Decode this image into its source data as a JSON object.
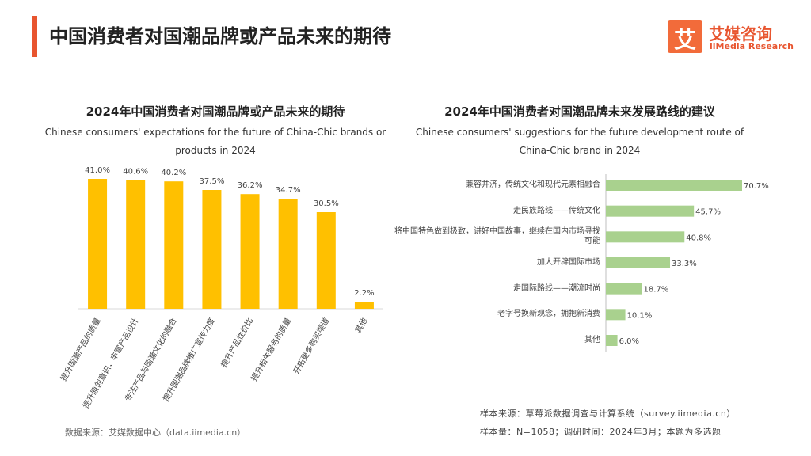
{
  "header": {
    "title": "中国消费者对国潮品牌或产品未来的期待",
    "logo_mark": "艾",
    "logo_cn": "艾媒咨询",
    "logo_en": "iiMedia Research"
  },
  "chart_data": [
    {
      "type": "bar",
      "orientation": "vertical",
      "color": "#ffc000",
      "title": "2024年中国消费者对国潮品牌或产品未来的期待",
      "subtitle": "Chinese consumers' expectations for the future of China-Chic brands or products in 2024",
      "categories": [
        "提升国潮产品的质量",
        "提升原创意识，丰富产品设计",
        "专注产品与国潮文化的融合",
        "提升国潮品牌推广宣传力度",
        "提升产品性价比",
        "提升相关服务的质量",
        "开拓更多购买渠道",
        "其他"
      ],
      "values": [
        41.0,
        40.6,
        40.2,
        37.5,
        36.2,
        34.7,
        30.5,
        2.2
      ],
      "value_labels": [
        "41.0%",
        "40.6%",
        "40.2%",
        "37.5%",
        "36.2%",
        "34.7%",
        "30.5%",
        "2.2%"
      ]
    },
    {
      "type": "bar",
      "orientation": "horizontal",
      "color": "#a9d18e",
      "title": "2024年中国消费者对国潮品牌未来发展路线的建议",
      "subtitle": "Chinese consumers' suggestions for the future development route of China-Chic brand in 2024",
      "categories": [
        "兼容并济，传统文化和现代元素相融合",
        "走民族路线——传统文化",
        "将中国特色做到极致，讲好中国故事，继续在国内市场寻找可能",
        "加大开辟国际市场",
        "走国际路线——潮流时尚",
        "老字号换新观念，拥抱新消费",
        "其他"
      ],
      "values": [
        70.7,
        45.7,
        40.8,
        33.3,
        18.7,
        10.1,
        6.0
      ],
      "value_labels": [
        "70.7%",
        "45.7%",
        "40.8%",
        "33.3%",
        "18.7%",
        "10.1%",
        "6.0%"
      ]
    }
  ],
  "notes": {
    "data_source": "数据来源：艾媒数据中心（data.iimedia.cn）",
    "sample_source": "样本来源：草莓派数据调查与计算系统（survey.iimedia.cn）",
    "sample_info": "样本量：N=1058；调研时间：2024年3月；本题为多选题"
  }
}
